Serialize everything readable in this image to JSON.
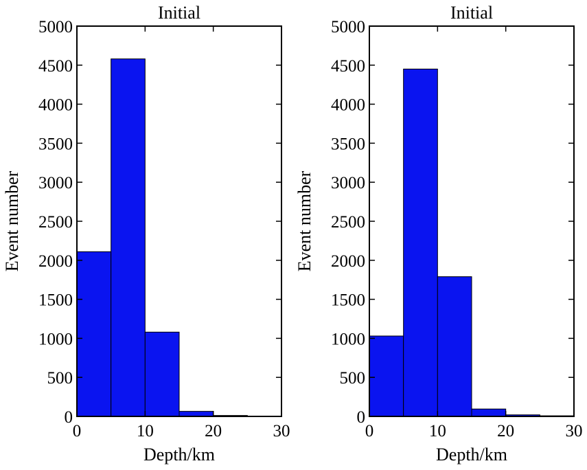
{
  "chart_data": [
    {
      "type": "bar",
      "title": "Initial",
      "xlabel": "Depth/km",
      "ylabel": "Event number",
      "bins": [
        [
          0,
          5
        ],
        [
          5,
          10
        ],
        [
          10,
          15
        ],
        [
          15,
          20
        ],
        [
          20,
          25
        ],
        [
          25,
          30
        ]
      ],
      "values": [
        2110,
        4580,
        1080,
        65,
        12,
        0
      ],
      "xlim": [
        0,
        30
      ],
      "ylim": [
        0,
        5000
      ],
      "xticks": [
        0,
        10,
        20,
        30
      ],
      "yticks": [
        0,
        500,
        1000,
        1500,
        2000,
        2500,
        3000,
        3500,
        4000,
        4500,
        5000
      ],
      "grid": false,
      "bar_color": "#0a14f0"
    },
    {
      "type": "bar",
      "title": "Initial",
      "xlabel": "Depth/km",
      "ylabel": "Event number",
      "bins": [
        [
          0,
          5
        ],
        [
          5,
          10
        ],
        [
          10,
          15
        ],
        [
          15,
          20
        ],
        [
          20,
          25
        ],
        [
          25,
          30
        ]
      ],
      "values": [
        1030,
        4450,
        1790,
        95,
        20,
        8
      ],
      "xlim": [
        0,
        30
      ],
      "ylim": [
        0,
        5000
      ],
      "xticks": [
        0,
        10,
        20,
        30
      ],
      "yticks": [
        0,
        500,
        1000,
        1500,
        2000,
        2500,
        3000,
        3500,
        4000,
        4500,
        5000
      ],
      "grid": false,
      "bar_color": "#0a14f0"
    }
  ]
}
